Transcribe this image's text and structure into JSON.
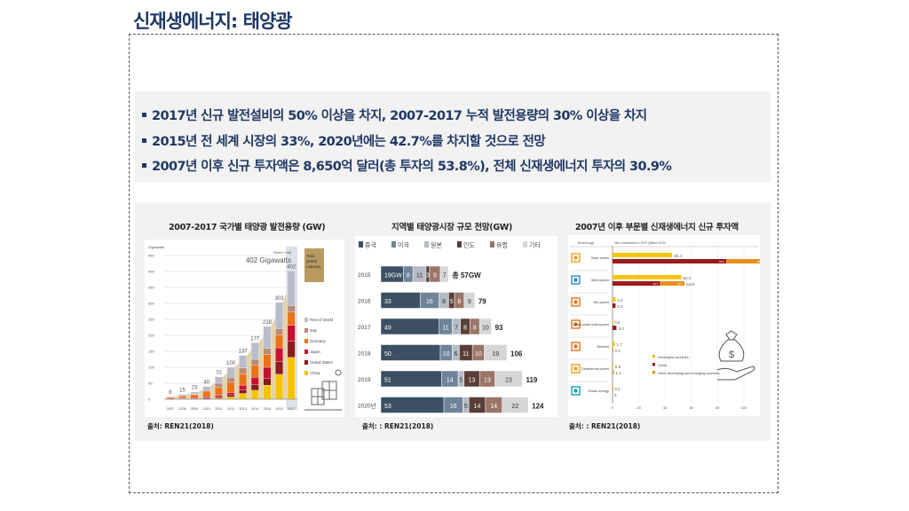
{
  "title": "신재생에너지: 태양광",
  "bullets": [
    "2017년 신규 발전설비의 50% 이상을 차지, 2007-2017 누적 발전용량의 30% 이상을 차지",
    "2015년 전 세계 시장의 33%, 2020년에는 42.7%를 차지할 것으로 전망",
    "2007년 이후 신규 투자액은 8,650억 달러(총 투자의 53.8%), 전체 신재생에너지 투자의 30.9%"
  ],
  "chart_data": [
    {
      "type": "bar",
      "stacked": true,
      "title": "2007-2017 국가별 태양광 발전용량 (GW)",
      "source": "출처: REN21(2018)",
      "ylabel": "Gigawatts",
      "ylim": [
        0,
        450
      ],
      "yticks": [
        "0",
        "50",
        "100",
        "150",
        "200",
        "250",
        "300",
        "350",
        "400",
        "450"
      ],
      "categories": [
        "2007",
        "2008",
        "2009",
        "2010",
        "2011",
        "2012",
        "2013",
        "2014",
        "2015",
        "2016",
        "2017"
      ],
      "totals": [
        "8",
        "15",
        "23",
        "40",
        "70",
        "100",
        "137",
        "177",
        "228",
        "303",
        "402"
      ],
      "annotation_top": "World Total",
      "annotation_main": "402 Gigawatts",
      "callout": [
        "Total",
        "global",
        "capacity"
      ],
      "series": [
        {
          "name": "China",
          "color": "#f5c400",
          "values": [
            0,
            0,
            0,
            1,
            3,
            7,
            18,
            28,
            44,
            78,
            131
          ]
        },
        {
          "name": "United States",
          "color": "#8b1a1a",
          "values": [
            1,
            2,
            2,
            3,
            4,
            7,
            12,
            18,
            22,
            41,
            51
          ]
        },
        {
          "name": "Japan",
          "color": "#c8102e",
          "values": [
            2,
            2,
            3,
            4,
            5,
            7,
            14,
            23,
            34,
            42,
            49
          ]
        },
        {
          "name": "Germany",
          "color": "#e8731a",
          "values": [
            4,
            6,
            10,
            17,
            25,
            32,
            36,
            38,
            40,
            41,
            42
          ]
        },
        {
          "name": "Italy",
          "color": "#b88a78",
          "values": [
            0,
            0,
            1,
            3,
            13,
            16,
            18,
            18,
            19,
            19,
            20
          ]
        },
        {
          "name": "Rest of World",
          "color": "#b8bccb",
          "values": [
            1,
            5,
            7,
            12,
            20,
            31,
            39,
            52,
            69,
            82,
            109
          ]
        }
      ]
    },
    {
      "type": "bar",
      "stacked": true,
      "orientation": "horizontal",
      "title": "지역별 태양광시장 규모 전망(GW)",
      "source": "출처: : REN21(2018)",
      "categories": [
        "2015",
        "2016",
        "2017",
        "2018",
        "2019",
        "2020년"
      ],
      "totals": [
        "총 57GW",
        "79",
        "93",
        "106",
        "119",
        "124"
      ],
      "series": [
        {
          "name": "중국",
          "color": "#3d4f63",
          "values": [
            19,
            33,
            49,
            50,
            51,
            53
          ],
          "labels": [
            "19GW",
            "33",
            "49",
            "50",
            "51",
            "53"
          ]
        },
        {
          "name": "미국",
          "color": "#6f8499",
          "values": [
            8,
            16,
            11,
            10,
            14,
            16
          ]
        },
        {
          "name": "일본",
          "color": "#b5bcc6",
          "values": [
            11,
            8,
            7,
            6,
            5,
            5
          ]
        },
        {
          "name": "인도",
          "color": "#5a3f38",
          "values": [
            3,
            5,
            8,
            11,
            13,
            14
          ]
        },
        {
          "name": "유럽",
          "color": "#9a7568",
          "values": [
            9,
            8,
            8,
            10,
            13,
            14
          ]
        },
        {
          "name": "기타",
          "color": "#d6d6d6",
          "values": [
            7,
            9,
            10,
            19,
            23,
            22
          ]
        }
      ]
    },
    {
      "type": "bar",
      "orientation": "horizontal",
      "title": "2007년 이후  부문별 신재생에너지 신규 투자액",
      "source": "출처: : REN21(2018)",
      "col_header_left": "Technology",
      "col_header_right": "New investment in 2007 (Billion USD)",
      "xlim": [
        0,
        120
      ],
      "xticks": [
        "0",
        "20",
        "40",
        "60",
        "80",
        "100",
        "120"
      ],
      "categories": [
        "Solar power",
        "Wind power",
        "Bio-power",
        "Small-scale hydropower",
        "Biofuels",
        "Geothermal power",
        "Ocean energy"
      ],
      "icon_colors": [
        "#f0a020",
        "#2a8fd0",
        "#e8731a",
        "#e8731a",
        "#e8731a",
        "#f0a020",
        "#1a9fb0"
      ],
      "series": [
        {
          "name": "Developed countries",
          "color": "#f5c400",
          "values": [
            45.4,
            52.4,
            2.3,
            0.2,
            1.7,
            0.6,
            0.2
          ]
        },
        {
          "name": "China",
          "color": "#9b1b1b",
          "values": [
            86.5,
            36.1,
            2.3,
            3.0,
            0,
            0,
            0
          ]
        },
        {
          "name": "Other developing and emerging countries",
          "color": "#e8901a",
          "values": [
            28.9,
            18.7,
            0,
            0,
            0.3,
            1.1,
            0
          ]
        }
      ],
      "developed_labels": [
        "45.4",
        "52.4",
        "2.3",
        "0.2",
        "1.7",
        "0.6",
        "0.2"
      ],
      "developing_labels": [
        "115.4",
        "54.8",
        "2.3",
        "3.0",
        "0.3",
        "1.1",
        "0"
      ],
      "segment_labels": [
        [
          "86.5",
          "28.9"
        ],
        [
          "36.1",
          "18.7"
        ]
      ],
      "legend": [
        "Developed countries",
        "China",
        "Other developing and emerging countries"
      ]
    }
  ]
}
